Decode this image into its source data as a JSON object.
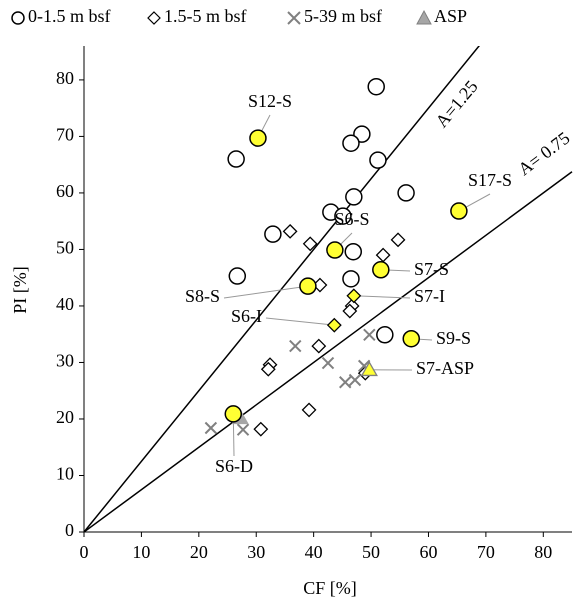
{
  "chart_data": {
    "type": "scatter",
    "x_label": "CF [%]",
    "y_label": "PI [%]",
    "xlim": [
      0,
      85
    ],
    "ylim": [
      0,
      86
    ],
    "xticks": [
      0,
      10,
      20,
      30,
      40,
      50,
      60,
      70,
      80
    ],
    "yticks": [
      0,
      10,
      20,
      30,
      40,
      50,
      60,
      70,
      80
    ],
    "series": [
      {
        "name": "0-1.5 m bsf",
        "marker": "circle",
        "color": "#000000",
        "x": [
          50.9,
          48.4,
          26.5,
          46.5,
          51.2,
          56.1,
          47.0,
          43.0,
          45.1,
          32.9,
          46.9,
          26.7,
          46.5,
          52.4
        ],
        "y": [
          78.8,
          70.4,
          66.0,
          68.8,
          65.8,
          60.0,
          59.3,
          56.6,
          55.9,
          52.7,
          49.6,
          45.3,
          44.8,
          34.9
        ]
      },
      {
        "name": "1.5-5 m bsf",
        "marker": "diamond",
        "color": "#000000",
        "x": [
          35.9,
          39.4,
          41.1,
          52.1,
          54.7,
          46.7,
          46.3,
          40.9,
          32.4,
          32.1,
          49.0,
          39.2,
          30.8
        ],
        "y": [
          53.2,
          51.0,
          43.7,
          49.0,
          51.7,
          40.0,
          39.1,
          32.9,
          29.6,
          28.8,
          28.1,
          21.6,
          18.2
        ]
      },
      {
        "name": "5-39 m bsf",
        "marker": "cross",
        "color": "#808080",
        "x": [
          36.8,
          42.5,
          45.5,
          47.2,
          48.8,
          49.7,
          22.1,
          27.7
        ],
        "y": [
          32.9,
          29.9,
          26.5,
          26.9,
          29.4,
          34.9,
          18.4,
          18.1
        ]
      },
      {
        "name": "ASP",
        "marker": "triangle",
        "color": "#a6a6a6",
        "x": [
          27.2
        ],
        "y": [
          20.2
        ]
      }
    ],
    "highlights": [
      {
        "label": "S12-S",
        "marker": "circle",
        "x": 30.3,
        "y": 69.7
      },
      {
        "label": "S6-S",
        "marker": "circle",
        "x": 43.7,
        "y": 49.9
      },
      {
        "label": "S17-S",
        "marker": "circle",
        "x": 65.3,
        "y": 56.8
      },
      {
        "label": "S7-S",
        "marker": "circle",
        "x": 51.7,
        "y": 46.4
      },
      {
        "label": "S8-S",
        "marker": "circle",
        "x": 39.0,
        "y": 43.5
      },
      {
        "label": "S7-I",
        "marker": "diamond",
        "x": 47.0,
        "y": 41.8
      },
      {
        "label": "S6-I",
        "marker": "diamond",
        "x": 43.6,
        "y": 36.6
      },
      {
        "label": "S9-S",
        "marker": "circle",
        "x": 57.0,
        "y": 34.2
      },
      {
        "label": "S7-ASP",
        "marker": "triangle",
        "x": 49.7,
        "y": 28.7
      },
      {
        "label": "S6-D",
        "marker": "circle",
        "x": 26.0,
        "y": 20.9
      }
    ],
    "highlight_color": "#ffff33",
    "reference_lines": [
      {
        "label": "A=1.25",
        "slope": 1.25
      },
      {
        "label": "A= 0.75",
        "slope": 0.75
      }
    ]
  }
}
